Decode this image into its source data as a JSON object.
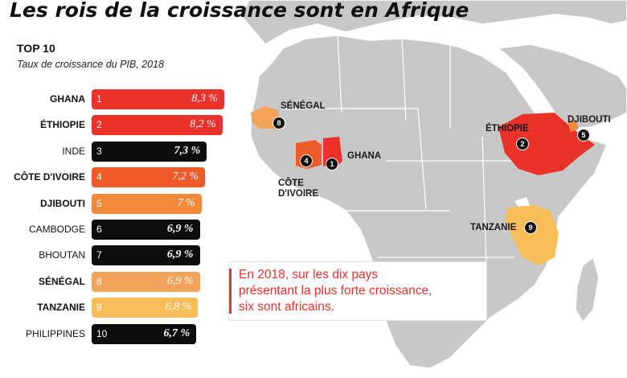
{
  "title": "Les rois de la croissance sont en Afrique",
  "subtitle": "TOP 10",
  "caption": "Taux de croissance du PIB, 2018",
  "colors": {
    "red": "#e8322a",
    "orange_red": "#ef5a2b",
    "orange": "#f08a3a",
    "light_orange": "#f4a35a",
    "yellow": "#f6bd58",
    "black": "#0d0d0d",
    "map_land": "#c8c8c8",
    "map_border": "#ffffff"
  },
  "chart_data": {
    "type": "bar",
    "categories": [
      "GHANA",
      "ÉTHIOPIE",
      "INDE",
      "CÔTE D'IVOIRE",
      "DJIBOUTI",
      "CAMBODGE",
      "BHOUTAN",
      "SÉNÉGAL",
      "TANZANIE",
      "PHILIPPINES"
    ],
    "ranks": [
      "1",
      "2",
      "3",
      "4",
      "5",
      "6",
      "7",
      "8",
      "9",
      "10"
    ],
    "values": [
      8.3,
      8.2,
      7.3,
      7.2,
      7.0,
      6.9,
      6.9,
      6.9,
      6.8,
      6.7
    ],
    "value_labels": [
      "8,3 %",
      "8,2 %",
      "7,3 %",
      "7,2 %",
      "7 %",
      "6,9 %",
      "6,9 %",
      "6,9 %",
      "6,8 %",
      "6,7 %"
    ],
    "african": [
      true,
      true,
      false,
      true,
      true,
      false,
      false,
      true,
      true,
      false
    ],
    "bar_colors": [
      "#e8322a",
      "#e8322a",
      "#0d0d0d",
      "#ef5a2b",
      "#f08a3a",
      "#0d0d0d",
      "#0d0d0d",
      "#f4a35a",
      "#f6bd58",
      "#0d0d0d"
    ]
  },
  "callout": {
    "text": "En 2018, sur les dix pays\nprésentant la plus forte croissance,\nsix sont africains."
  },
  "map_labels": [
    {
      "text": "SÉNÉGAL"
    },
    {
      "text": "GHANA"
    },
    {
      "text": "CÔTE\nD'IVOIRE"
    },
    {
      "text": "ÉTHIOPIE"
    },
    {
      "text": "DJIBOUTI"
    },
    {
      "text": "TANZANIE"
    }
  ],
  "map_markers": [
    "8",
    "4",
    "1",
    "2",
    "5",
    "9"
  ]
}
